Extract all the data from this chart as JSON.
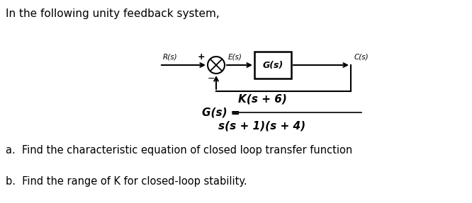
{
  "title_text": "In the following unity feedback system,",
  "title_fontsize": 11,
  "bg_color": "#ffffff",
  "text_color": "#000000",
  "block_diagram": {
    "box_label": "G(s)",
    "R_label": "R(s)",
    "E_label": "E(s)",
    "C_label": "C(s)",
    "plus_sign": "+",
    "minus_sign": "−"
  },
  "formula_Gs": "G(s) =",
  "formula_numerator": "K(s + 6)",
  "formula_denominator": "s(s + 1)(s + 4)",
  "question_a": "a.  Find the characteristic equation of closed loop transfer function",
  "question_b": "b.  Find the range of K for closed-loop stability.",
  "font_family": "DejaVu Sans"
}
